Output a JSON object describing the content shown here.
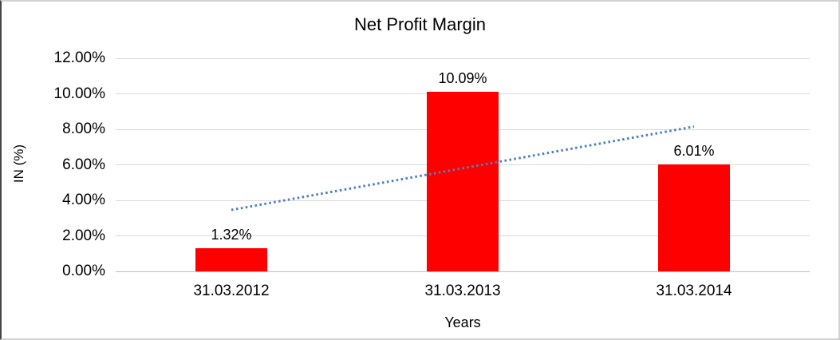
{
  "chart_data": {
    "type": "bar",
    "title": "Net Profit Margin",
    "xlabel": "Years",
    "ylabel": "IN (%)",
    "categories": [
      "31.03.2012",
      "31.03.2013",
      "31.03.2014"
    ],
    "series": [
      {
        "name": "Net Profit Margin",
        "values": [
          1.32,
          10.09,
          6.01
        ]
      }
    ],
    "data_labels": [
      "1.32%",
      "10.09%",
      "6.01%"
    ],
    "y_ticks": [
      "0.00%",
      "2.00%",
      "4.00%",
      "6.00%",
      "8.00%",
      "10.00%",
      "12.00%"
    ],
    "ylim": [
      0,
      12
    ],
    "y_tick_step": 2,
    "grid": true,
    "legend": "none",
    "bar_color": "#FF0000",
    "gridline_color": "#D9D9D9",
    "axis_line_color": "#BFBFBF",
    "text_color": "#000000",
    "trendline": {
      "type": "linear",
      "style": "dotted",
      "color": "#4F81BD",
      "start_value_pct": 3.46,
      "end_value_pct": 8.15
    }
  }
}
